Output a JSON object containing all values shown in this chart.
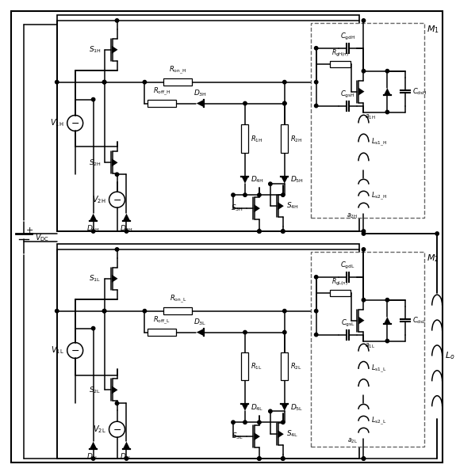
{
  "fig_width": 5.75,
  "fig_height": 5.96,
  "bg_color": "#ffffff",
  "line_color": "#000000"
}
